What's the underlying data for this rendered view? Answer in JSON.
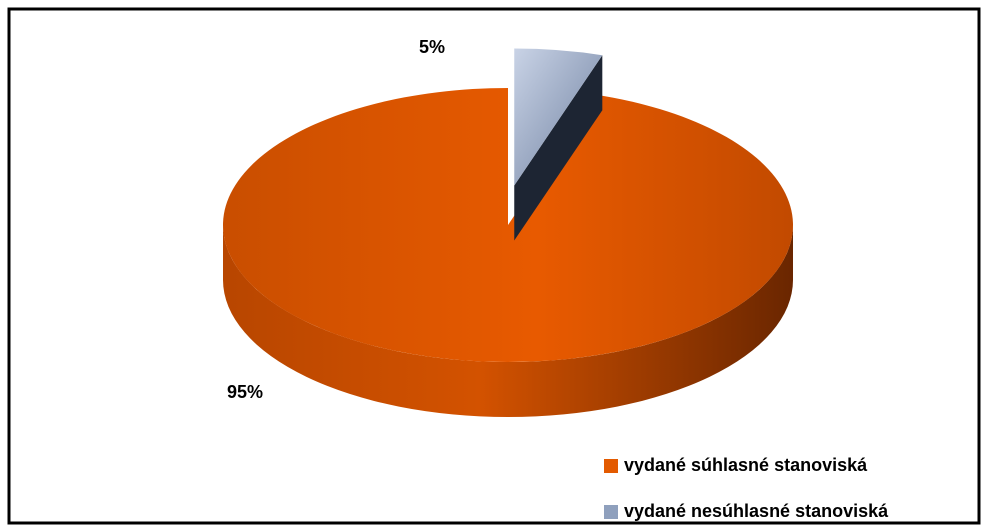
{
  "chart_data": {
    "type": "pie",
    "categories": [
      "vydané súhlasné stanoviská",
      "vydané nesúhlasné stanoviská"
    ],
    "values": [
      95,
      5
    ],
    "value_labels": [
      "95%",
      "5%"
    ],
    "colors": [
      "#e35a00",
      "#8fa0bd"
    ],
    "legend": "bottom-right"
  }
}
